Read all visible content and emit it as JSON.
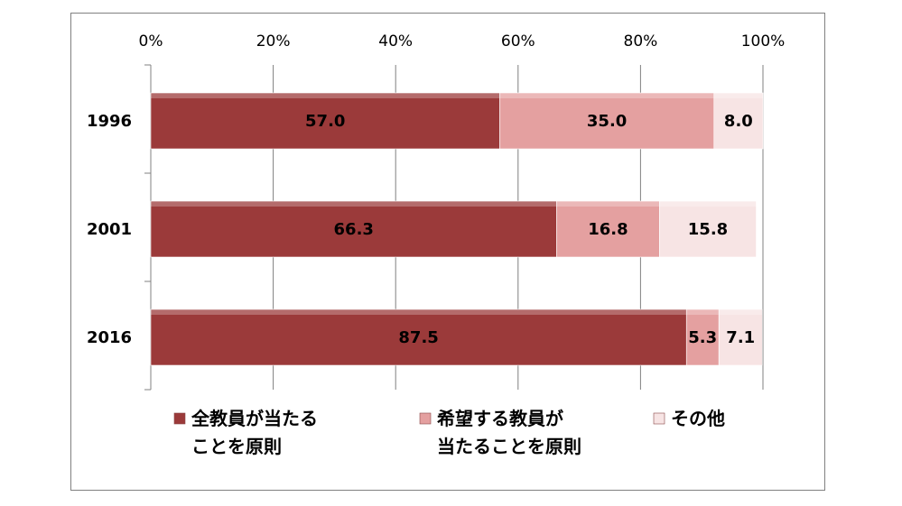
{
  "chart_data": {
    "type": "bar",
    "orientation": "horizontal",
    "stacked": true,
    "percent_stacked": true,
    "categories": [
      "1996",
      "2001",
      "2016"
    ],
    "series": [
      {
        "name": "全教員が当たることを原則",
        "legend_lines": [
          "全教員が当たる",
          "ことを原則"
        ],
        "values": [
          57.0,
          66.3,
          87.5
        ],
        "labels": [
          "57.0",
          "66.3",
          "87.5"
        ],
        "color": "#9b3a3a"
      },
      {
        "name": "希望する教員が当たることを原則",
        "legend_lines": [
          "希望する教員が",
          "当たることを原則"
        ],
        "values": [
          35.0,
          16.8,
          5.3
        ],
        "labels": [
          "35.0",
          "16.8",
          "5.3"
        ],
        "color": "#e4a0a0"
      },
      {
        "name": "その他",
        "legend_lines": [
          "その他"
        ],
        "values": [
          8.0,
          15.8,
          7.1
        ],
        "labels": [
          "8.0",
          "15.8",
          "7.1"
        ],
        "color": "#f7e4e4"
      }
    ],
    "xaxis": {
      "position": "top",
      "ticks": [
        "0%",
        "20%",
        "40%",
        "60%",
        "80%",
        "100%"
      ],
      "range": [
        0,
        100
      ]
    },
    "grid": true,
    "legend_position": "bottom"
  }
}
